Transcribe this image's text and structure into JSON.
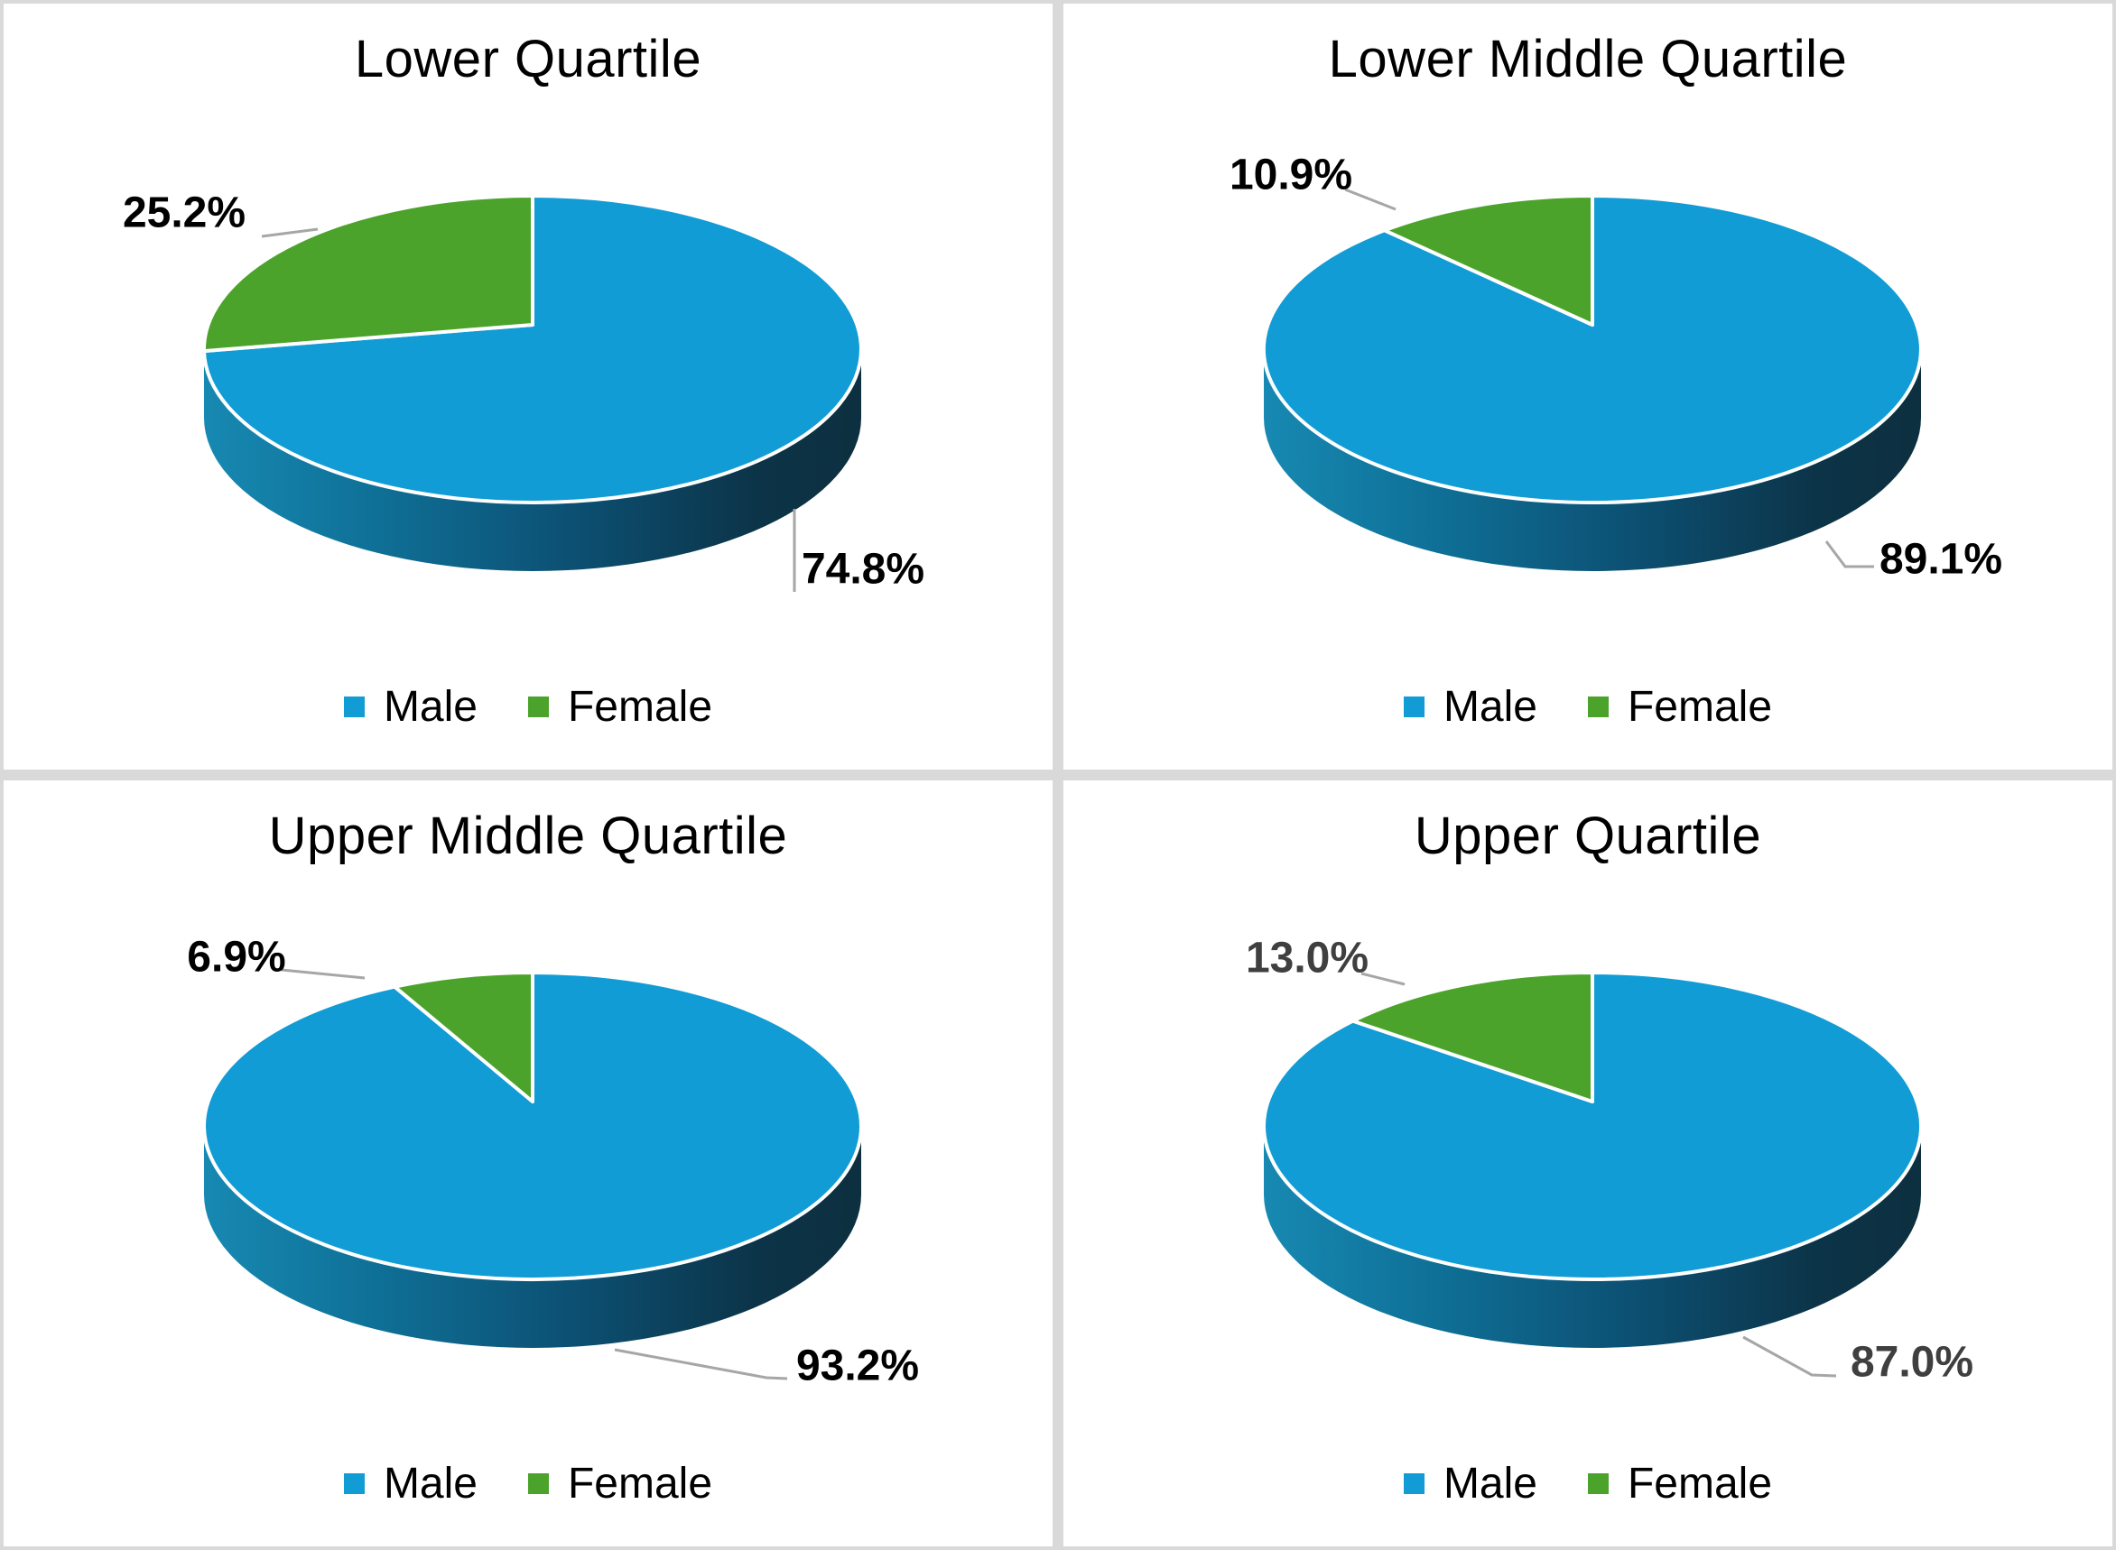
{
  "figure": {
    "background_color": "#FFFFFF",
    "panel_border_color": "#D9D9D9",
    "leader_line_color": "#A6A6A6",
    "legend_labels": [
      "Male",
      "Female"
    ]
  },
  "chart_data": [
    {
      "type": "pie",
      "style": "3d",
      "title": "Lower Quartile",
      "labels": [
        "Male",
        "Female"
      ],
      "values": [
        74.8,
        25.2
      ],
      "data_labels": [
        "74.8%",
        "25.2%"
      ],
      "unit": "%",
      "colors": [
        "#119CD5",
        "#4CA32B"
      ],
      "legend_position": "bottom",
      "data_label_color": "#000000"
    },
    {
      "type": "pie",
      "style": "3d",
      "title": "Lower Middle Quartile",
      "labels": [
        "Male",
        "Female"
      ],
      "values": [
        89.1,
        10.9
      ],
      "data_labels": [
        "89.1%",
        "10.9%"
      ],
      "unit": "%",
      "colors": [
        "#119CD5",
        "#4CA32B"
      ],
      "legend_position": "bottom",
      "data_label_color": "#000000"
    },
    {
      "type": "pie",
      "style": "3d",
      "title": "Upper Middle Quartile",
      "labels": [
        "Male",
        "Female"
      ],
      "values": [
        93.2,
        6.9
      ],
      "data_labels": [
        "93.2%",
        "6.9%"
      ],
      "unit": "%",
      "colors": [
        "#119CD5",
        "#4CA32B"
      ],
      "legend_position": "bottom",
      "data_label_color": "#000000"
    },
    {
      "type": "pie",
      "style": "3d",
      "title": "Upper Quartile",
      "labels": [
        "Male",
        "Female"
      ],
      "values": [
        87.0,
        13.0
      ],
      "data_labels": [
        "87.0%",
        "13.0%"
      ],
      "unit": "%",
      "colors": [
        "#119CD5",
        "#4CA32B"
      ],
      "legend_position": "bottom",
      "data_label_color": "#3F3F3F"
    }
  ]
}
